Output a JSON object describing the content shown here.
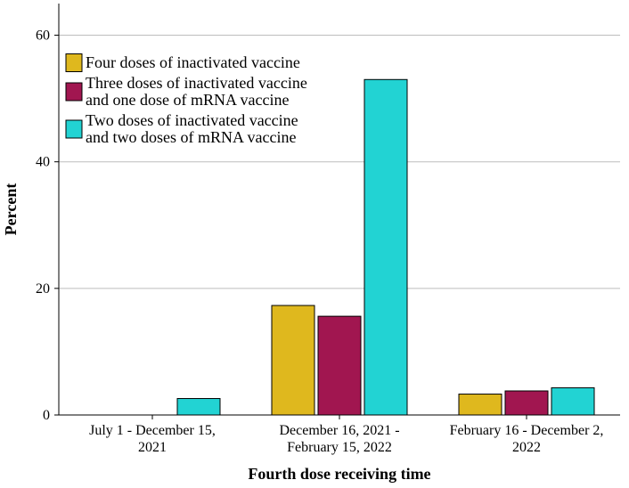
{
  "chart_data": {
    "type": "bar",
    "xlabel": "Fourth dose receiving time",
    "ylabel": "Percent",
    "ylim": [
      0,
      65
    ],
    "yticks": [
      0,
      20,
      40,
      60
    ],
    "grid": true,
    "legend_position": "top-left",
    "categories": [
      [
        "July 1 - December 15,",
        "2021"
      ],
      [
        "December 16, 2021 -",
        "February 15, 2022"
      ],
      [
        "February 16 - December 2,",
        "2022"
      ]
    ],
    "series": [
      {
        "name": [
          "Four doses of inactivated vaccine"
        ],
        "color": "#DFB81E",
        "values": [
          0,
          17.3,
          3.3
        ]
      },
      {
        "name": [
          "Three doses of inactivated vaccine",
          "and one dose of mRNA vaccine"
        ],
        "color": "#A11650",
        "values": [
          0,
          15.6,
          3.8
        ]
      },
      {
        "name": [
          "Two doses of inactivated vaccine",
          "and two doses of mRNA vaccine"
        ],
        "color": "#22D3D3",
        "values": [
          2.6,
          53.0,
          4.3
        ]
      }
    ]
  }
}
